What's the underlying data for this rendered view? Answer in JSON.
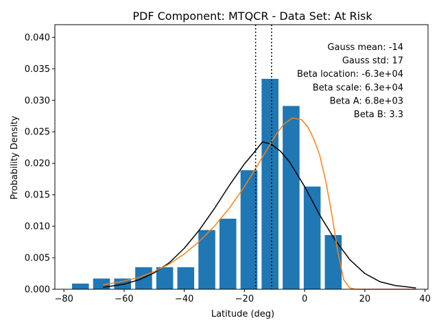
{
  "chart_data": {
    "type": "bar",
    "title": "PDF Component: MTQCR - Data Set: At Risk",
    "xlabel": "Latitude (deg)",
    "ylabel": "Probability Density",
    "xlim": [
      -83,
      41
    ],
    "ylim": [
      0,
      0.042
    ],
    "x_ticks": [
      -80,
      -60,
      -40,
      -20,
      0,
      20,
      40
    ],
    "x_tick_labels": [
      "−80",
      "−60",
      "−40",
      "−20",
      "0",
      "20",
      "40"
    ],
    "y_ticks": [
      0,
      0.005,
      0.01,
      0.015,
      0.02,
      0.025,
      0.03,
      0.035,
      0.04
    ],
    "y_tick_labels": [
      "0.000",
      "0.005",
      "0.010",
      "0.015",
      "0.020",
      "0.025",
      "0.030",
      "0.035",
      "0.040"
    ],
    "bar_width": 5.6,
    "bars": {
      "centers": [
        -74.5,
        -67.5,
        -60.5,
        -53.5,
        -46.5,
        -39.5,
        -32.5,
        -25.5,
        -18.5,
        -11.5,
        -4.5,
        2.5,
        9.5
      ],
      "values": [
        0.0009,
        0.0017,
        0.0017,
        0.0035,
        0.0035,
        0.0035,
        0.0094,
        0.0112,
        0.0189,
        0.0334,
        0.0291,
        0.0163,
        0.0086
      ],
      "color": "#1f77b4"
    },
    "series": [
      {
        "type": "line",
        "color": "#000000",
        "x": [
          -67,
          -60,
          -55,
          -50,
          -45,
          -40,
          -35,
          -30,
          -25,
          -20,
          -17,
          -14,
          -11,
          -8,
          -5,
          0,
          5,
          10,
          15,
          20,
          25,
          30,
          37
        ],
        "y": [
          0.0003,
          0.0008,
          0.0015,
          0.0026,
          0.0042,
          0.0065,
          0.0094,
          0.0128,
          0.0165,
          0.0199,
          0.0216,
          0.0234,
          0.023,
          0.0219,
          0.0202,
          0.0163,
          0.0118,
          0.0079,
          0.0047,
          0.0025,
          0.0012,
          0.0006,
          0.0002
        ]
      },
      {
        "type": "line",
        "color": "#ff7f0e",
        "x": [
          -67,
          -60,
          -55,
          -50,
          -45,
          -40,
          -35,
          -30,
          -25,
          -20,
          -15,
          -10,
          -7,
          -4,
          -1,
          1,
          3,
          5,
          7,
          9,
          11,
          13,
          15,
          17,
          20,
          30,
          37
        ],
        "y": [
          0.0007,
          0.0013,
          0.0019,
          0.0028,
          0.004,
          0.0056,
          0.0076,
          0.01,
          0.0129,
          0.0163,
          0.0202,
          0.0242,
          0.0262,
          0.0272,
          0.0269,
          0.0258,
          0.0239,
          0.0213,
          0.0172,
          0.012,
          0.006,
          0.0015,
          0.0002,
          0.0,
          0.0,
          0.0,
          0.0
        ]
      }
    ],
    "vlines": [
      {
        "x": -16.3,
        "style": "dotted",
        "color": "#000000"
      },
      {
        "x": -11.0,
        "style": "dotted",
        "color": "#000000"
      }
    ],
    "annotations": [
      "Gauss mean: -14",
      "Gauss std: 17",
      "Beta location: -6.3e+04",
      "Beta scale: 6.3e+04",
      "Beta A: 6.8e+03",
      "Beta B: 3.3"
    ],
    "grid": false
  }
}
